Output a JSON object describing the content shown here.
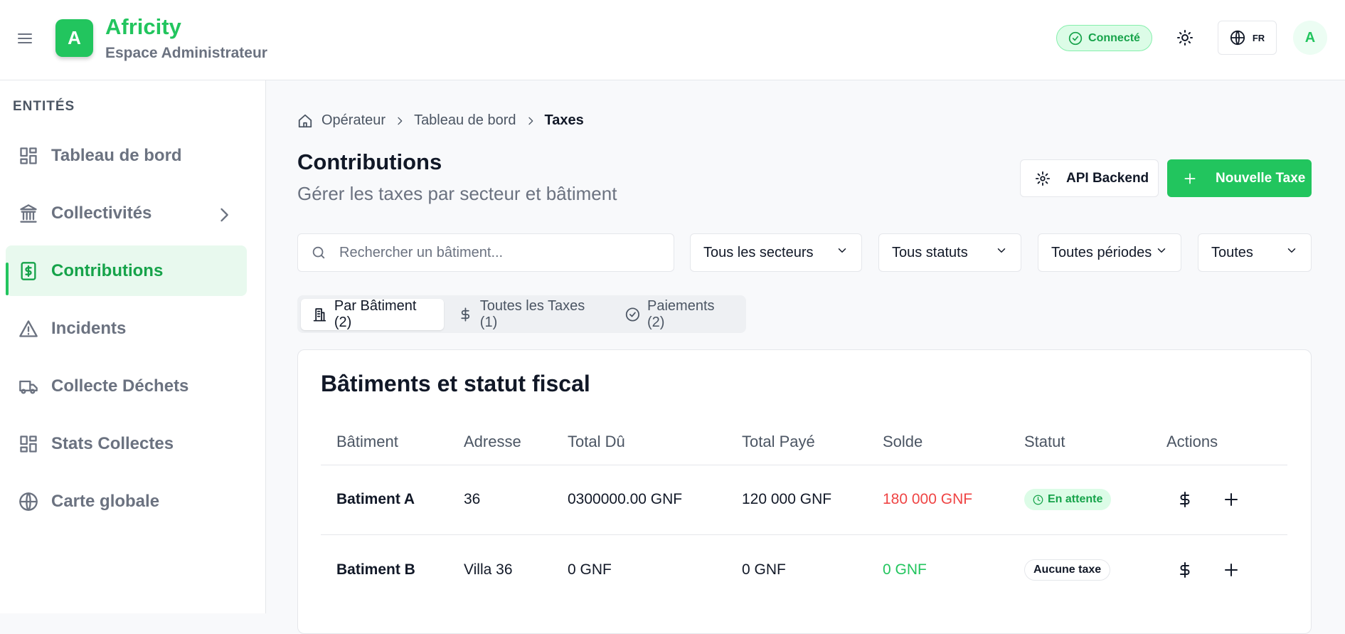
{
  "header": {
    "brand": "Africity",
    "subtitle": "Espace Administrateur",
    "logo": "A",
    "status": "Connecté",
    "lang": "FR",
    "avatar": "A"
  },
  "sidebar": {
    "section": "ENTITÉS",
    "items": [
      "Tableau de bord",
      "Collectivités",
      "Contributions",
      "Incidents",
      "Collecte Déchets",
      "Stats Collectes",
      "Carte globale"
    ]
  },
  "breadcrumb": [
    "Opérateur",
    "Tableau de bord",
    "Taxes"
  ],
  "page": {
    "title": "Contributions",
    "subtitle": "Gérer les taxes par secteur et bâtiment"
  },
  "buttons": {
    "api": "API Backend",
    "new": "Nouvelle Taxe"
  },
  "search": {
    "placeholder": "Rechercher un bâtiment..."
  },
  "filters": [
    "Tous les secteurs",
    "Tous statuts",
    "Toutes périodes",
    "Toutes"
  ],
  "tabs": [
    "Par Bâtiment (2)",
    "Toutes les Taxes (1)",
    "Paiements (2)"
  ],
  "card": {
    "title": "Bâtiments et statut fiscal",
    "columns": [
      "Bâtiment",
      "Adresse",
      "Total Dû",
      "Total Payé",
      "Solde",
      "Statut",
      "Actions"
    ],
    "rows": [
      [
        "Batiment A",
        "36",
        "0300000.00 GNF",
        "120 000 GNF",
        "180 000 GNF",
        "En attente"
      ],
      [
        "Batiment B",
        "Villa 36",
        "0 GNF",
        "0 GNF",
        "0 GNF",
        "Aucune taxe"
      ]
    ]
  }
}
